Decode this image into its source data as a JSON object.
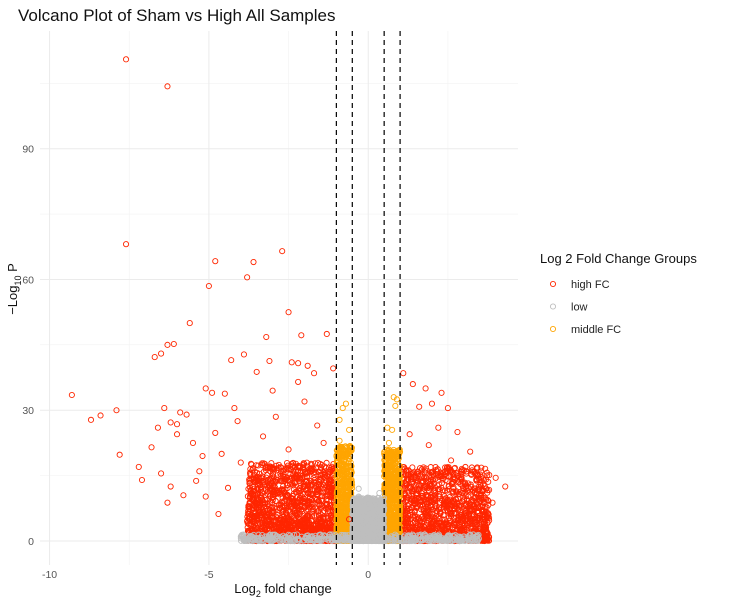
{
  "chart_data": {
    "type": "scatter",
    "title": "Volcano Plot of Sham vs High All Samples",
    "xlabel_parts": [
      "Log",
      "2",
      " fold change"
    ],
    "ylabel_parts": [
      "−Log",
      "10",
      " P"
    ],
    "xlim": [
      -10.3,
      4.7
    ],
    "ylim": [
      -5.5,
      117
    ],
    "x_ticks": [
      -10,
      -5,
      0
    ],
    "x_tick_labels": [
      "-10",
      "-5",
      "0"
    ],
    "y_ticks": [
      0,
      30,
      60,
      90
    ],
    "y_tick_labels": [
      "0",
      "30",
      "60",
      "90"
    ],
    "grid": true,
    "vlines": {
      "values": [
        -1,
        -0.5,
        0.5,
        1
      ],
      "style": "dashed",
      "color": "#000000"
    },
    "legend": {
      "title": "Log 2 Fold Change Groups",
      "position": "right",
      "entries": [
        {
          "label": "high FC",
          "color": "#ff2600"
        },
        {
          "label": "low",
          "color": "#bebebe"
        },
        {
          "label": "middle FC",
          "color": "#ffa500"
        }
      ]
    },
    "series": [
      {
        "name": "high FC",
        "color": "#ff2600",
        "points": [
          [
            -7.6,
            110.5
          ],
          [
            -6.3,
            104.3
          ],
          [
            -7.6,
            68.1
          ],
          [
            -2.7,
            66.5
          ],
          [
            -4.8,
            64.2
          ],
          [
            -3.6,
            64.0
          ],
          [
            -3.8,
            60.5
          ],
          [
            -5.0,
            58.5
          ],
          [
            -2.5,
            52.5
          ],
          [
            -5.6,
            50.0
          ],
          [
            -1.3,
            47.5
          ],
          [
            -2.1,
            47.2
          ],
          [
            -3.2,
            46.8
          ],
          [
            -6.1,
            45.2
          ],
          [
            -6.3,
            45.0
          ],
          [
            -6.5,
            43.0
          ],
          [
            -6.7,
            42.2
          ],
          [
            -3.9,
            42.8
          ],
          [
            -4.3,
            41.5
          ],
          [
            -3.1,
            41.3
          ],
          [
            -2.4,
            41.0
          ],
          [
            -2.2,
            40.8
          ],
          [
            -1.9,
            40.2
          ],
          [
            -1.1,
            39.6
          ],
          [
            -1.7,
            38.5
          ],
          [
            1.1,
            38.5
          ],
          [
            1.4,
            36.0
          ],
          [
            1.8,
            35.0
          ],
          [
            2.3,
            34.0
          ],
          [
            -9.3,
            33.5
          ],
          [
            -8.4,
            28.8
          ],
          [
            -8.7,
            27.8
          ],
          [
            -7.9,
            30.0
          ],
          [
            -7.8,
            19.8
          ],
          [
            -7.2,
            17.0
          ],
          [
            -7.1,
            14.0
          ],
          [
            -6.4,
            30.5
          ],
          [
            -6.2,
            27.2
          ],
          [
            -5.9,
            29.5
          ],
          [
            -5.7,
            29.0
          ],
          [
            -5.1,
            35.0
          ],
          [
            -4.9,
            34.0
          ],
          [
            -4.5,
            33.8
          ],
          [
            -4.2,
            30.5
          ],
          [
            -6.8,
            21.5
          ],
          [
            -6.6,
            26.0
          ],
          [
            -6.0,
            26.8
          ],
          [
            -6.0,
            24.5
          ],
          [
            -5.5,
            22.5
          ],
          [
            -5.2,
            19.5
          ],
          [
            -4.6,
            20.0
          ],
          [
            -4.0,
            18.0
          ],
          [
            -3.7,
            16.5
          ],
          [
            -6.5,
            15.5
          ],
          [
            -6.2,
            12.5
          ],
          [
            -5.8,
            10.5
          ],
          [
            -6.3,
            8.8
          ],
          [
            -5.1,
            10.2
          ],
          [
            -4.4,
            12.2
          ],
          [
            -4.7,
            6.2
          ],
          [
            -3.4,
            9.0
          ],
          [
            -3.0,
            7.0
          ],
          [
            -2.6,
            3.8
          ],
          [
            2.5,
            30.5
          ],
          [
            2.0,
            31.5
          ],
          [
            1.6,
            30.8
          ],
          [
            2.8,
            25.0
          ],
          [
            2.2,
            26.0
          ],
          [
            3.2,
            20.5
          ],
          [
            2.9,
            16.0
          ],
          [
            3.4,
            15.2
          ],
          [
            3.6,
            11.5
          ],
          [
            3.3,
            9.2
          ],
          [
            4.0,
            14.5
          ],
          [
            4.3,
            12.5
          ],
          [
            3.9,
            8.8
          ],
          [
            3.7,
            5.5
          ],
          [
            3.1,
            4.0
          ],
          [
            -3.0,
            34.5
          ],
          [
            -2.0,
            32.0
          ],
          [
            -2.9,
            28.5
          ],
          [
            -1.6,
            26.5
          ],
          [
            -3.3,
            24.0
          ],
          [
            -1.4,
            22.5
          ],
          [
            -2.5,
            21.0
          ],
          [
            1.3,
            24.5
          ],
          [
            1.9,
            22.0
          ],
          [
            2.6,
            18.5
          ],
          [
            1.5,
            14.0
          ],
          [
            2.1,
            11.0
          ],
          [
            2.7,
            8.0
          ],
          [
            -1.8,
            16.8
          ],
          [
            -2.3,
            14.5
          ],
          [
            -1.5,
            12.0
          ],
          [
            -2.8,
            11.2
          ],
          [
            -3.6,
            7.5
          ],
          [
            -1.9,
            6.0
          ],
          [
            1.8,
            5.5
          ],
          [
            2.4,
            4.0
          ],
          [
            -5.4,
            13.8
          ],
          [
            -4.1,
            27.5
          ],
          [
            -3.5,
            38.8
          ],
          [
            -2.2,
            36.5
          ],
          [
            -4.8,
            24.8
          ],
          [
            -5.3,
            16.0
          ],
          [
            -0.6,
            5.0
          ]
        ]
      },
      {
        "name": "middle FC",
        "color": "#ffa500",
        "points": [
          [
            -0.8,
            30.5
          ],
          [
            -0.7,
            31.5
          ],
          [
            -0.9,
            27.8
          ],
          [
            -0.6,
            25.5
          ],
          [
            -0.75,
            21.5
          ],
          [
            -0.9,
            23.0
          ],
          [
            -0.55,
            18.0
          ],
          [
            -0.85,
            16.0
          ],
          [
            0.8,
            33.0
          ],
          [
            0.9,
            32.5
          ],
          [
            0.85,
            31.0
          ],
          [
            0.6,
            26.0
          ],
          [
            0.75,
            25.5
          ],
          [
            0.65,
            22.5
          ],
          [
            0.9,
            19.5
          ],
          [
            0.55,
            17.0
          ],
          [
            0.8,
            15.5
          ],
          [
            0.7,
            12.0
          ]
        ]
      },
      {
        "name": "low",
        "color": "#bebebe",
        "points": [
          [
            -2.5,
            0.5
          ],
          [
            -1.8,
            1.0
          ],
          [
            -1.2,
            1.5
          ],
          [
            2.0,
            0.8
          ],
          [
            3.0,
            0.6
          ],
          [
            -0.3,
            10.2
          ],
          [
            0.15,
            9.8
          ],
          [
            -0.2,
            8.5
          ],
          [
            0.25,
            7.2
          ],
          [
            -0.4,
            6.0
          ],
          [
            0.4,
            5.5
          ],
          [
            -0.1,
            4.5
          ],
          [
            0.3,
            4.0
          ],
          [
            -3.5,
            0.7
          ],
          [
            3.3,
            1.5
          ],
          [
            -0.3,
            12.0
          ],
          [
            0.35,
            11.0
          ]
        ]
      }
    ],
    "bands": [
      {
        "group": "high FC",
        "color": "#ff2600",
        "x_min": -3.8,
        "x_max": -1.0,
        "y_peak": 18.0,
        "count": 1500
      },
      {
        "group": "high FC",
        "color": "#ff2600",
        "x_min": 1.0,
        "x_max": 3.8,
        "y_peak": 17.0,
        "count": 1300
      },
      {
        "group": "middle FC",
        "color": "#ffa500",
        "x_min": -1.0,
        "x_max": -0.5,
        "y_peak": 22.0,
        "count": 800
      },
      {
        "group": "middle FC",
        "color": "#ffa500",
        "x_min": 0.5,
        "x_max": 1.0,
        "y_peak": 21.0,
        "count": 800
      },
      {
        "group": "low",
        "color": "#bebebe",
        "x_min": -0.5,
        "x_max": 0.5,
        "y_peak": 10.0,
        "count": 1600
      },
      {
        "group": "low",
        "color": "#bebebe",
        "x_min": -4.0,
        "x_max": 3.5,
        "y_peak": 1.5,
        "count": 500
      }
    ]
  }
}
